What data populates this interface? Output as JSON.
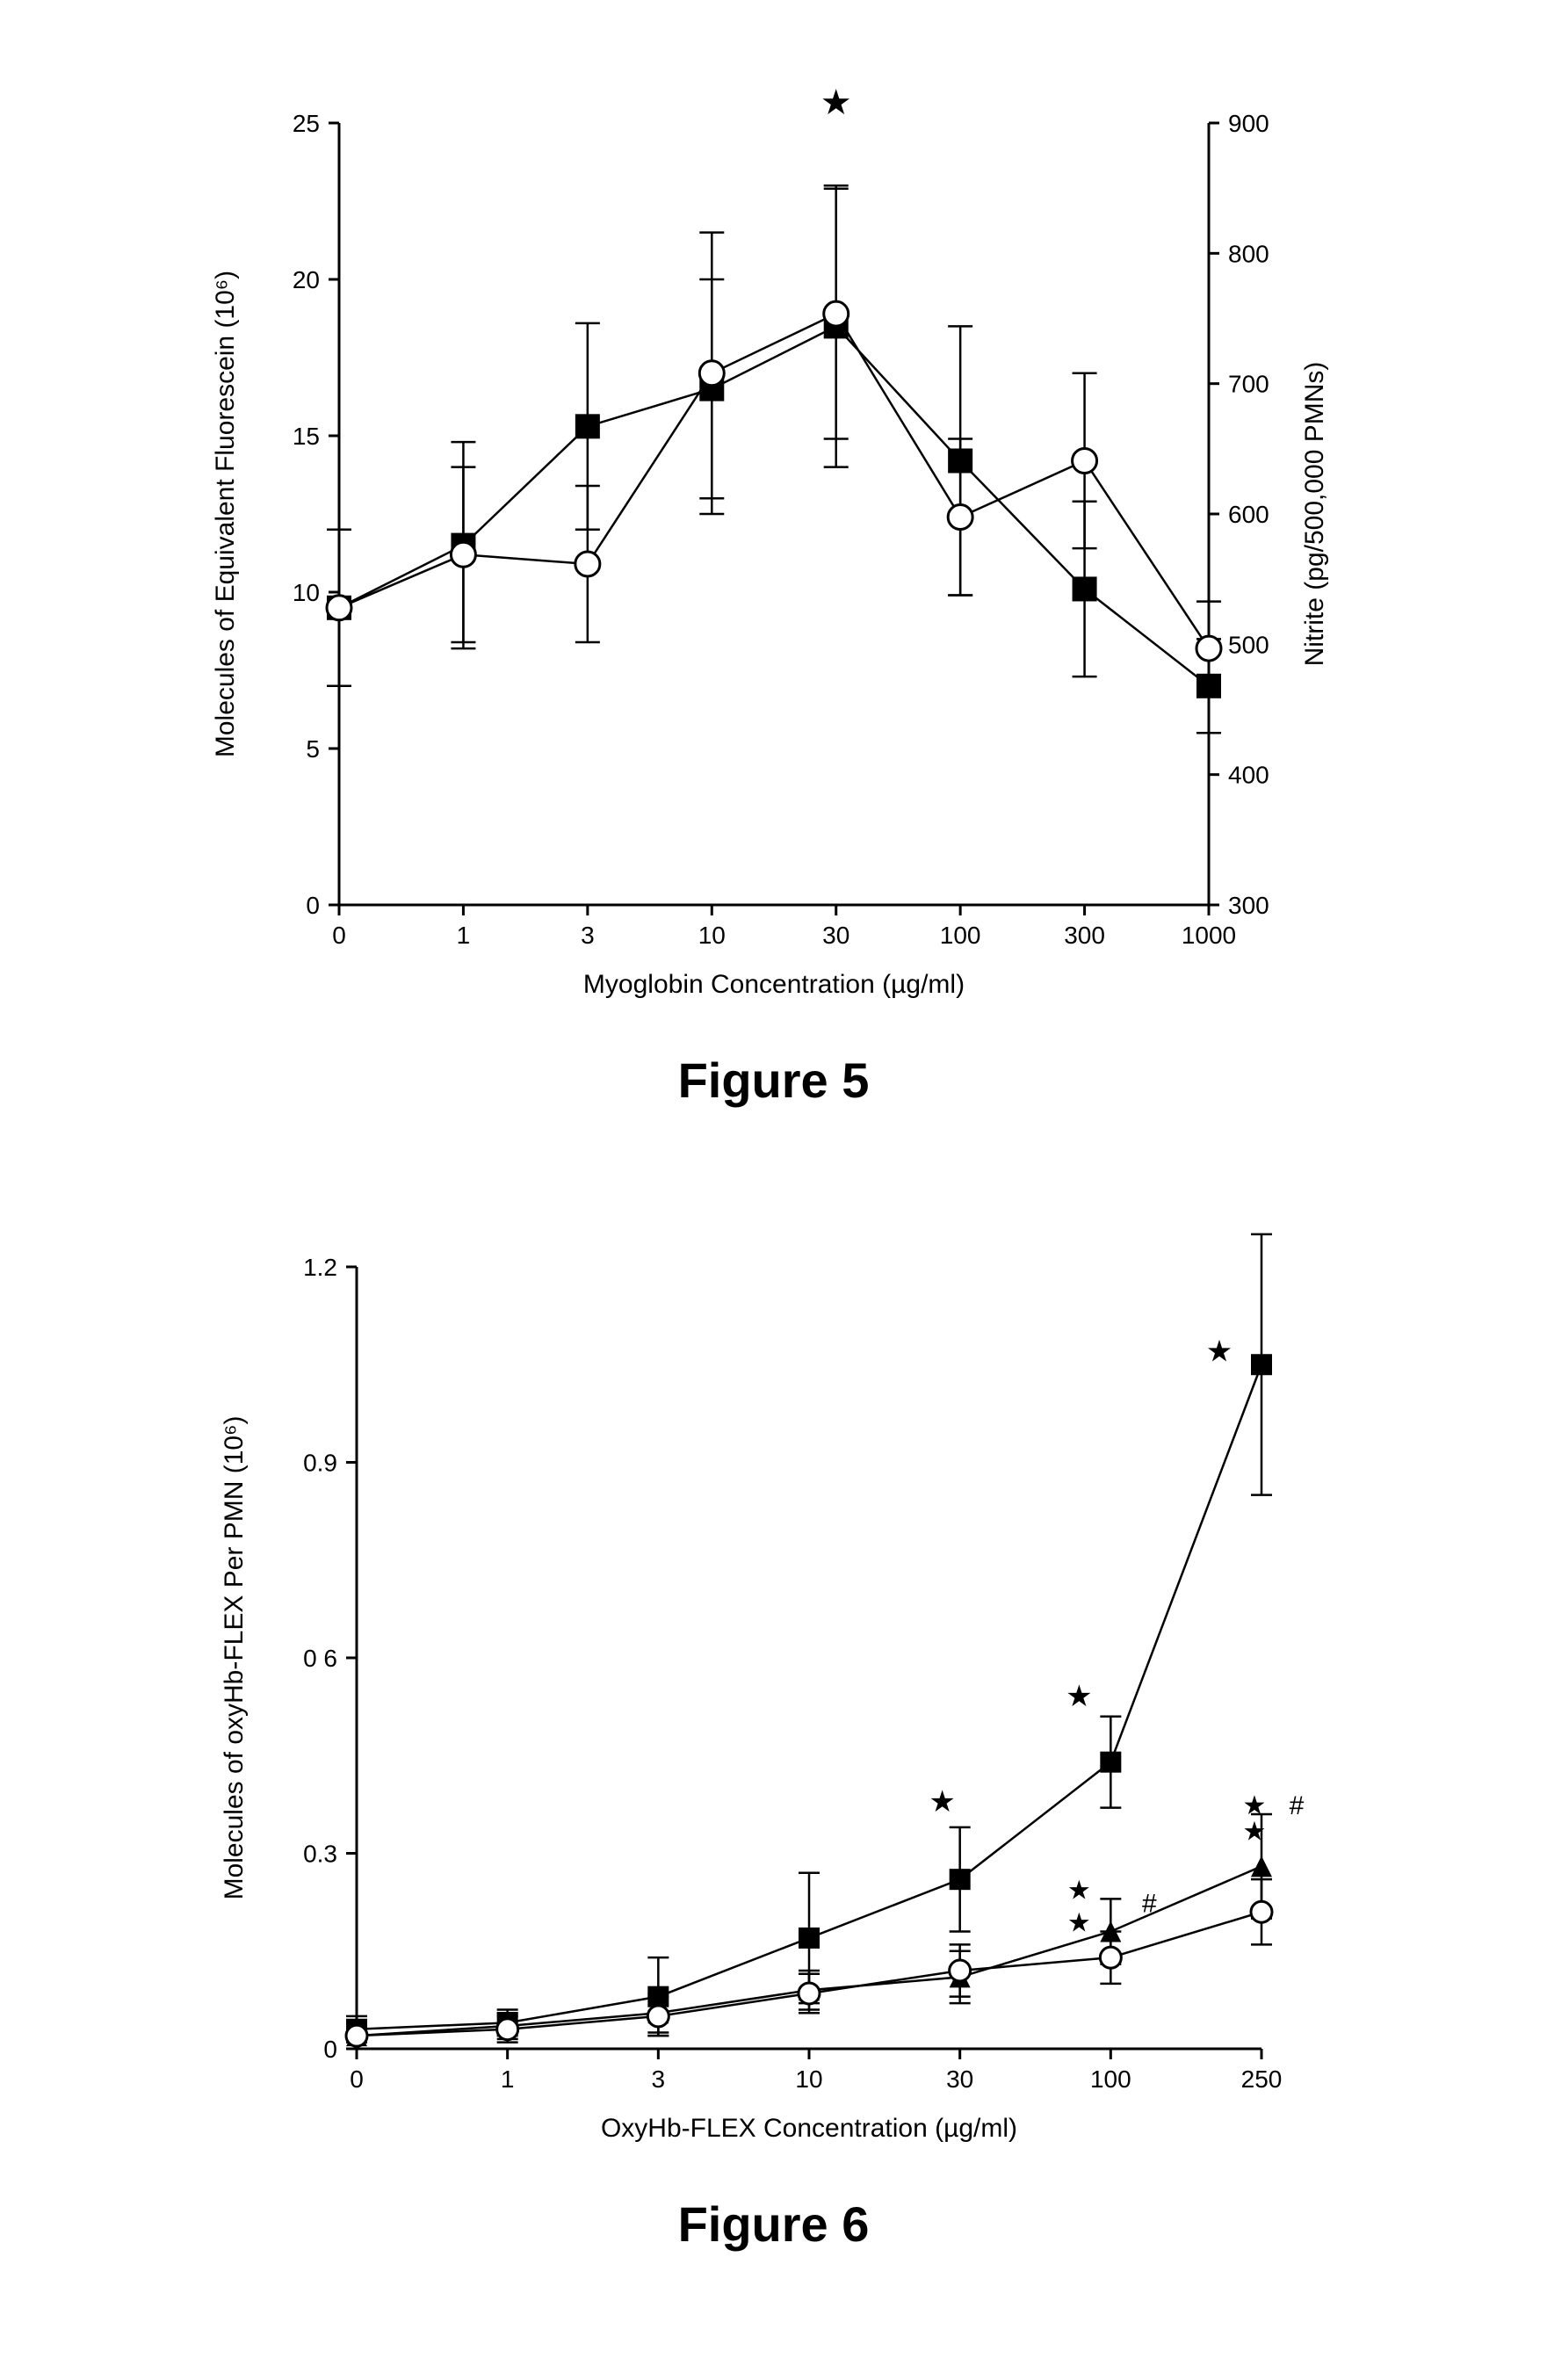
{
  "figure5": {
    "type": "line-dual-axis",
    "caption": "Figure 5",
    "xlabel": "Myoglobin Concentration (µg/ml)",
    "ylabel_left": "Molecules of Equivalent Fluorescein (10⁶)",
    "ylabel_right": "Nitrite (pg/500,000 PMNs)",
    "x_categories": [
      "0",
      "1",
      "3",
      "10",
      "30",
      "100",
      "300",
      "1000"
    ],
    "y_left": {
      "min": 0,
      "max": 25,
      "ticks": [
        0,
        5,
        10,
        15,
        20,
        25
      ]
    },
    "y_right": {
      "min": 300,
      "max": 900,
      "ticks": [
        300,
        400,
        500,
        600,
        700,
        800,
        900
      ]
    },
    "series_filled": {
      "marker": "square-filled",
      "color": "#000000",
      "y_left_values": [
        9.5,
        11.5,
        15.3,
        16.5,
        18.5,
        14.2,
        10.1,
        7.0
      ],
      "err_left": [
        2.5,
        3.3,
        3.3,
        3.5,
        4.5,
        4.3,
        2.8,
        1.5
      ]
    },
    "series_open": {
      "marker": "circle-open",
      "color": "#000000",
      "y_left_values": [
        9.5,
        11.2,
        10.9,
        17.0,
        18.9,
        12.4,
        14.2,
        8.2
      ],
      "err_left": [
        2.5,
        2.8,
        2.5,
        4.5,
        4.0,
        2.5,
        2.8,
        1.5
      ]
    },
    "significance_marks": [
      {
        "x_index": 4,
        "symbol": "★"
      }
    ],
    "line_width": 2.5,
    "marker_size": 14,
    "errorbar_cap": 14,
    "background_color": "#ffffff",
    "axis_color": "#000000",
    "tick_fontsize": 28,
    "label_fontsize": 30,
    "caption_fontsize": 56
  },
  "figure6": {
    "type": "line",
    "caption": "Figure 6",
    "xlabel": "OxyHb-FLEX Concentration (µg/ml)",
    "ylabel": "Molecules of oxyHb-FLEX Per PMN (10⁶)",
    "x_categories": [
      "0",
      "1",
      "3",
      "10",
      "30",
      "100",
      "250"
    ],
    "y": {
      "min": 0,
      "max": 1.2,
      "ticks": [
        0,
        0.3,
        0.6,
        0.9,
        1.2
      ],
      "tick_labels": [
        "0",
        "0.3",
        "0 6",
        "0.9",
        "1.2"
      ]
    },
    "series_top": {
      "marker": "square-filled",
      "color": "#000000",
      "y_values": [
        0.03,
        0.04,
        0.08,
        0.17,
        0.26,
        0.44,
        1.05
      ],
      "err": [
        0.02,
        0.02,
        0.06,
        0.1,
        0.08,
        0.07,
        0.2
      ]
    },
    "series_mid": {
      "marker": "triangle-filled",
      "color": "#000000",
      "y_values": [
        0.02,
        0.035,
        0.055,
        0.09,
        0.11,
        0.18,
        0.28
      ],
      "err": [
        0.02,
        0.02,
        0.03,
        0.03,
        0.04,
        0.05,
        0.08
      ]
    },
    "series_bot": {
      "marker": "circle-open",
      "color": "#000000",
      "y_values": [
        0.02,
        0.03,
        0.05,
        0.085,
        0.12,
        0.14,
        0.21
      ],
      "err": [
        0.02,
        0.02,
        0.03,
        0.03,
        0.04,
        0.04,
        0.05
      ]
    },
    "significance_marks": [
      {
        "x_index": 4,
        "symbol_group": [
          "★"
        ]
      },
      {
        "x_index": 5,
        "symbol_group": [
          "★",
          "★",
          "★",
          "#"
        ]
      },
      {
        "x_index": 6,
        "symbol_group": [
          "★",
          "★",
          "★",
          "#"
        ]
      }
    ],
    "line_width": 2.5,
    "marker_size": 12,
    "errorbar_cap": 12,
    "background_color": "#ffffff",
    "axis_color": "#000000",
    "tick_fontsize": 28,
    "label_fontsize": 30,
    "caption_fontsize": 56
  }
}
